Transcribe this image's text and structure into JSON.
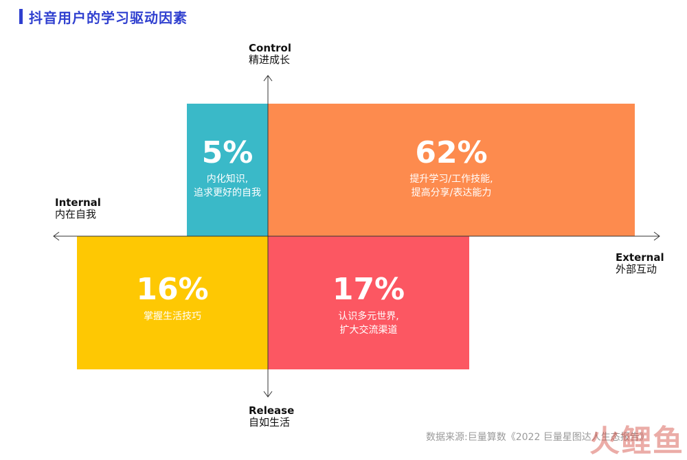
{
  "title": "抖音用户的学习驱动因素",
  "axes": {
    "top": {
      "en": "Control",
      "zh": "精进成长"
    },
    "bottom": {
      "en": "Release",
      "zh": "自如生活"
    },
    "left": {
      "en": "Internal",
      "zh": "内在自我"
    },
    "right": {
      "en": "External",
      "zh": "外部互动"
    }
  },
  "chart_data": {
    "type": "quadrant",
    "x_axis": {
      "negative": "Internal 内在自我",
      "positive": "External 外部互动"
    },
    "y_axis": {
      "positive": "Control 精进成长",
      "negative": "Release 自如生活"
    },
    "segments": [
      {
        "quadrant": "internal-control",
        "value": "5%",
        "label": [
          "内化知识,",
          "追求更好的自我"
        ],
        "color": "#3ab9c8"
      },
      {
        "quadrant": "external-control",
        "value": "62%",
        "label": [
          "提升学习/工作技能,",
          "提高分享/表达能力"
        ],
        "color": "#fd8b4e"
      },
      {
        "quadrant": "internal-release",
        "value": "16%",
        "label": [
          "掌握生活技巧"
        ],
        "color": "#fec803"
      },
      {
        "quadrant": "external-release",
        "value": "17%",
        "label": [
          "认识多元世界,",
          "扩大交流渠道"
        ],
        "color": "#fc5762"
      }
    ]
  },
  "source": "数据来源:巨量算数《2022 巨量星图达人生态报告》",
  "watermark": "火鲤鱼"
}
